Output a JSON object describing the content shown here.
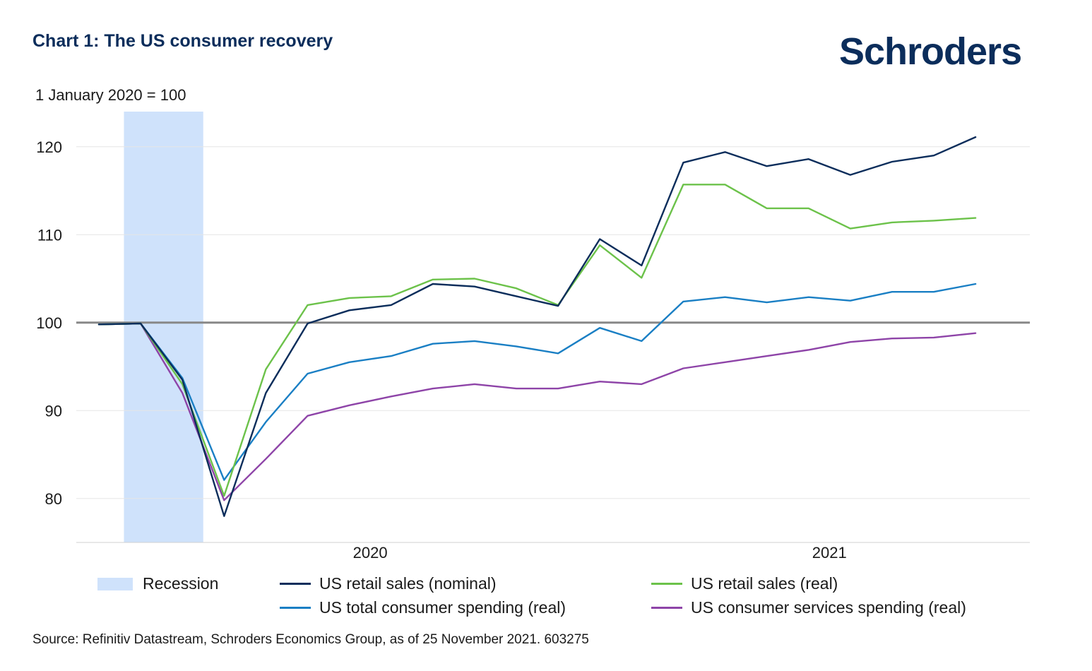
{
  "header": {
    "title": "Chart 1: The US consumer recovery",
    "brand": "Schroders",
    "subtitle": "1 January 2020 = 100"
  },
  "source": "Source: Refinitiv Datastream, Schroders Economics Group, as of 25 November 2021. 603275",
  "colors": {
    "nominal": "#0b2d5b",
    "retail_real": "#6cc24a",
    "total_spending": "#1a7fc4",
    "services": "#8e44a8",
    "recession": "#cfe2fb",
    "baseline": "#888888",
    "grid": "#e6e6e6"
  },
  "legend": {
    "recession": "Recession",
    "nominal": "US retail sales (nominal)",
    "retail_real": "US retail sales (real)",
    "total_spending": "US total consumer spending (real)",
    "services": "US consumer services spending (real)"
  },
  "chart_data": {
    "type": "line",
    "title": "Chart 1: The US consumer recovery",
    "subtitle": "1 January 2020 = 100",
    "ylim": [
      75,
      124
    ],
    "yticks": [
      80,
      90,
      100,
      110,
      120
    ],
    "x_tick_labels": [
      {
        "label": "2020",
        "x": 6.5
      },
      {
        "label": "2021",
        "x": 17.5
      }
    ],
    "x": [
      0,
      1,
      2,
      3,
      4,
      5,
      6,
      7,
      8,
      9,
      10,
      11,
      12,
      13,
      14,
      15,
      16,
      17,
      18,
      19,
      20,
      21
    ],
    "recession": [
      0.6,
      2.5
    ],
    "baseline": 100,
    "grid": true,
    "legend_position": "bottom",
    "series": [
      {
        "key": "nominal",
        "name": "US retail sales (nominal)",
        "values": [
          99.8,
          99.9,
          93.5,
          78.0,
          92.0,
          99.9,
          101.4,
          102.0,
          104.4,
          104.1,
          103.0,
          101.9,
          109.5,
          106.5,
          118.2,
          119.4,
          117.8,
          118.6,
          116.8,
          118.3,
          119.0,
          121.1
        ]
      },
      {
        "key": "retail_real",
        "name": "US retail sales (real)",
        "values": [
          99.8,
          99.9,
          93.0,
          80.3,
          94.7,
          102.0,
          102.8,
          103.0,
          104.9,
          105.0,
          103.9,
          102.0,
          108.8,
          105.1,
          115.7,
          115.7,
          113.0,
          113.0,
          110.7,
          111.4,
          111.6,
          111.9
        ]
      },
      {
        "key": "total_spending",
        "name": "US total consumer spending (real)",
        "values": [
          99.8,
          99.9,
          93.7,
          82.1,
          88.7,
          94.2,
          95.5,
          96.2,
          97.6,
          97.9,
          97.3,
          96.5,
          99.4,
          97.9,
          102.4,
          102.9,
          102.3,
          102.9,
          102.5,
          103.5,
          103.5,
          104.4
        ]
      },
      {
        "key": "services",
        "name": "US consumer services spending (real)",
        "values": [
          99.8,
          99.9,
          92.0,
          79.8,
          84.5,
          89.4,
          90.6,
          91.6,
          92.5,
          93.0,
          92.5,
          92.5,
          93.3,
          93.0,
          94.8,
          95.5,
          96.2,
          96.9,
          97.8,
          98.2,
          98.3,
          98.8
        ]
      }
    ]
  }
}
